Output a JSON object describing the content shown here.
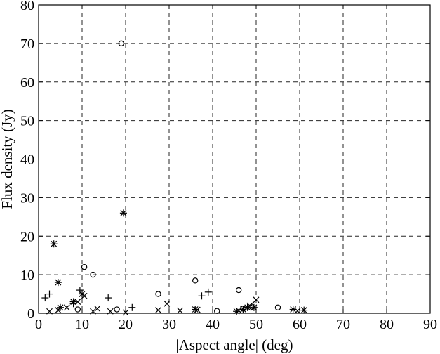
{
  "chart_data": {
    "type": "scatter",
    "title": "",
    "xlabel": "|Aspect angle| (deg)",
    "ylabel": "Flux density (Jy)",
    "xlim": [
      0,
      90
    ],
    "ylim": [
      0,
      80
    ],
    "xticks": [
      "0",
      "10",
      "20",
      "30",
      "40",
      "50",
      "60",
      "70",
      "80",
      "90"
    ],
    "yticks": [
      "0",
      "10",
      "20",
      "30",
      "40",
      "50",
      "60",
      "70",
      "80"
    ],
    "grid": true,
    "series": [
      {
        "marker": "circle",
        "points": [
          [
            19,
            70.0
          ],
          [
            10.5,
            12.0
          ],
          [
            12.5,
            10.0
          ],
          [
            27.5,
            5.0
          ],
          [
            36,
            8.5
          ],
          [
            46,
            6.0
          ],
          [
            55,
            1.5
          ],
          [
            9,
            1.0
          ],
          [
            18,
            1.0
          ],
          [
            41,
            0.6
          ],
          [
            47,
            1.2
          ],
          [
            49,
            1.7
          ]
        ]
      },
      {
        "marker": "asterisk",
        "points": [
          [
            19.5,
            26.0
          ],
          [
            3.5,
            18.0
          ],
          [
            4.5,
            8.0
          ],
          [
            10,
            5.0
          ],
          [
            8,
            3.0
          ],
          [
            5,
            1.5
          ],
          [
            36,
            1.0
          ],
          [
            45.5,
            0.5
          ],
          [
            47,
            1.0
          ],
          [
            48,
            1.5
          ],
          [
            49.5,
            1.5
          ],
          [
            58.5,
            1.0
          ],
          [
            61,
            0.8
          ]
        ]
      },
      {
        "marker": "plus",
        "points": [
          [
            1.5,
            4.0
          ],
          [
            2.5,
            5.0
          ],
          [
            9.5,
            6.0
          ],
          [
            16,
            4.0
          ],
          [
            21.5,
            1.5
          ],
          [
            37.5,
            4.5
          ],
          [
            39,
            5.5
          ],
          [
            8,
            2.5
          ]
        ]
      },
      {
        "marker": "cross",
        "points": [
          [
            2.5,
            0.5
          ],
          [
            4.5,
            0.8
          ],
          [
            6.5,
            1.5
          ],
          [
            9,
            3.0
          ],
          [
            10.5,
            4.5
          ],
          [
            12.5,
            0.5
          ],
          [
            13.5,
            1.2
          ],
          [
            16.5,
            0.5
          ],
          [
            20,
            0.2
          ],
          [
            27.5,
            0.8
          ],
          [
            29.5,
            2.5
          ],
          [
            32.5,
            0.7
          ],
          [
            36.5,
            0.9
          ],
          [
            46,
            0.7
          ],
          [
            48.5,
            2.0
          ],
          [
            50,
            3.5
          ],
          [
            59.5,
            0.6
          ]
        ]
      }
    ]
  }
}
